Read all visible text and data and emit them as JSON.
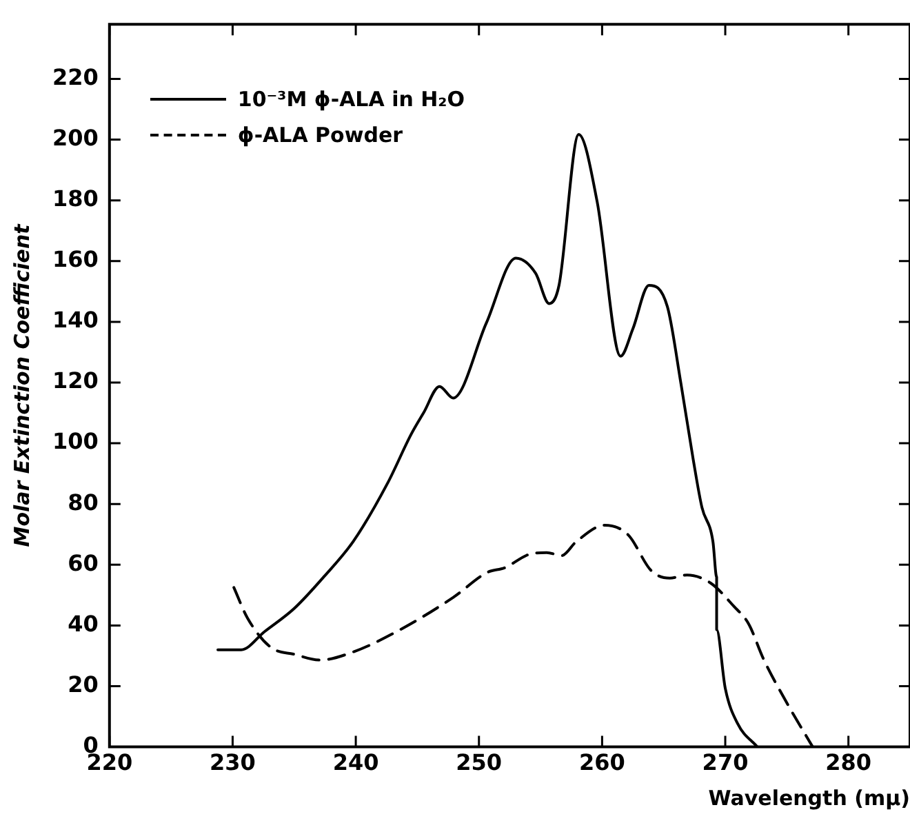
{
  "chart_data": {
    "type": "line",
    "xlabel": "Wavelength (mμ)",
    "ylabel": "Molar Extinction Coefficient",
    "xlim": [
      220,
      285
    ],
    "xticks": [
      220,
      230,
      240,
      250,
      260,
      270,
      280
    ],
    "ylim": [
      0,
      238
    ],
    "yticks": [
      0,
      20,
      40,
      60,
      80,
      100,
      120,
      140,
      160,
      180,
      200,
      220
    ],
    "grid": false,
    "legend": "top left",
    "marker": "none",
    "series": [
      {
        "name": "10⁻³M ϕ-ALA in H₂O",
        "color": "#000000",
        "line_style": "solid",
        "x": [
          228.8,
          230.7,
          232.6,
          235,
          237.4,
          239.8,
          242.6,
          244.5,
          245.5,
          246.8,
          247.9,
          250.6,
          253,
          254.6,
          255.7,
          256.5,
          258.1,
          259.6,
          261.5,
          262.5,
          263.8,
          265.3,
          266.4,
          267.4,
          268.1,
          269,
          269.3,
          269.3,
          270,
          271,
          272.6
        ],
        "values": [
          32,
          32,
          38,
          45.6,
          56,
          67.7,
          87,
          103,
          110,
          118.7,
          114.9,
          139.6,
          161,
          156,
          146,
          152,
          201.7,
          179.5,
          128.7,
          137.7,
          152,
          145,
          119.7,
          94.6,
          79,
          67.6,
          56,
          38.6,
          19.3,
          7.7,
          0
        ]
      },
      {
        "name": "ϕ-ALA Powder",
        "color": "#000000",
        "line_style": "dashed",
        "x": [
          230.1,
          231.2,
          233.1,
          235,
          237.1,
          239.8,
          243.6,
          247.9,
          250.7,
          252.1,
          254,
          255.5,
          256.7,
          257.9,
          260.2,
          262.1,
          264,
          265.5,
          266.9,
          268.8,
          270.7,
          271.9,
          273.1,
          275,
          277.1
        ],
        "values": [
          52.5,
          42.5,
          32.8,
          30.5,
          28.6,
          31.3,
          38.6,
          49.2,
          57.5,
          59,
          63.3,
          64,
          63,
          67.6,
          73,
          69.9,
          58,
          55.6,
          56.6,
          54,
          46.3,
          40.5,
          29,
          14.5,
          0
        ]
      }
    ]
  }
}
